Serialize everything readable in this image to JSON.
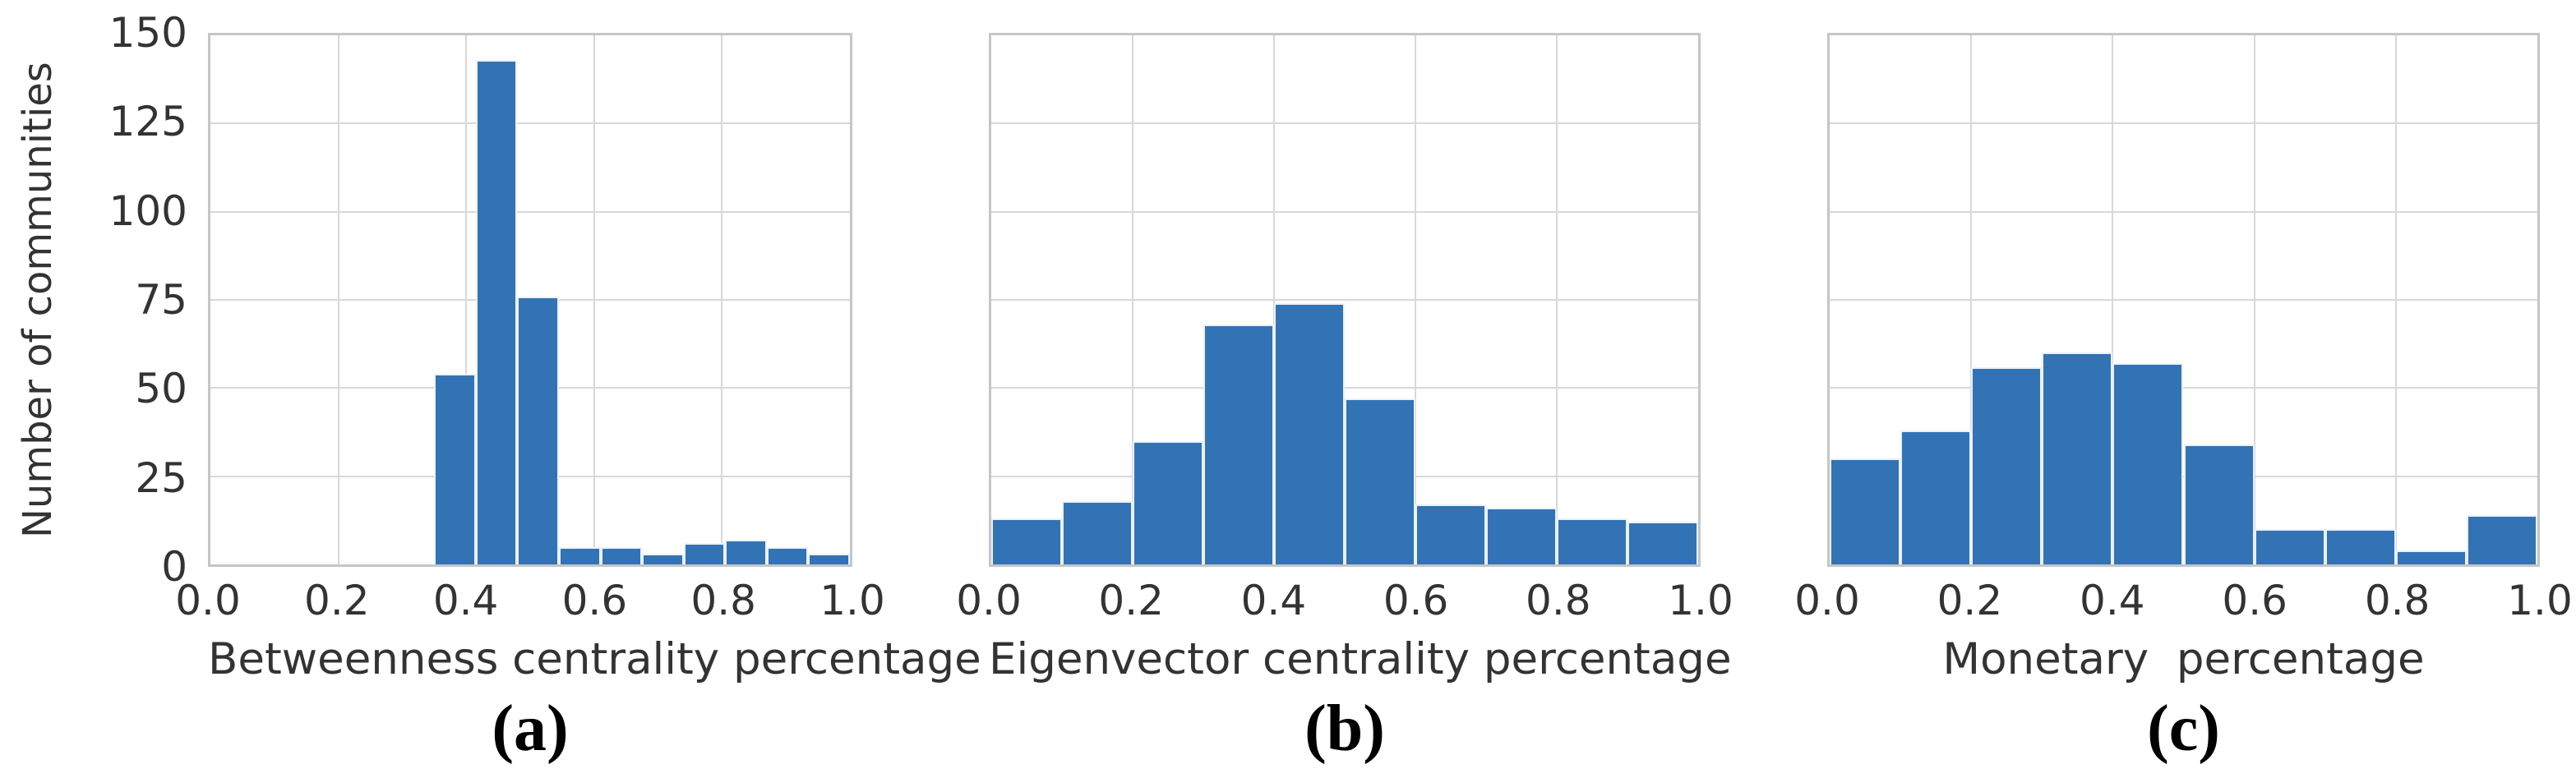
{
  "figure": {
    "background": "#ffffff",
    "y_axis": {
      "label": "Number of communities",
      "tick_labels": [
        "0",
        "25",
        "50",
        "75",
        "100",
        "125",
        "150"
      ],
      "tick_values": [
        0,
        25,
        50,
        75,
        100,
        125,
        150
      ],
      "max": 150
    },
    "x_axis": {
      "tick_labels": [
        "0.0",
        "0.2",
        "0.4",
        "0.6",
        "0.8",
        "1.0"
      ],
      "tick_values": [
        0,
        0.2,
        0.4,
        0.6,
        0.8,
        1.0
      ]
    },
    "colors": {
      "bar_fill": "#3273b5",
      "grid_line": "#d8d8d8",
      "plot_border": "#c6c6c6",
      "text": "#333333"
    }
  },
  "chart_data": [
    {
      "type": "bar",
      "panel_letter": "(a)",
      "xlabel": "Betweenness centrality percentage",
      "ylabel": "Number of communities",
      "xlim": [
        0,
        1
      ],
      "ylim": [
        0,
        150
      ],
      "grid": true,
      "legend": null,
      "bin_start": 0.35,
      "bin_width": 0.065,
      "values": [
        54,
        143,
        76,
        5,
        5,
        3,
        6,
        7,
        5,
        3
      ]
    },
    {
      "type": "bar",
      "panel_letter": "(b)",
      "xlabel": "Eigenvector centrality percentage",
      "ylabel": "",
      "xlim": [
        0,
        1
      ],
      "ylim": [
        0,
        150
      ],
      "grid": true,
      "legend": null,
      "bin_start": 0.0,
      "bin_width": 0.1,
      "values": [
        13,
        18,
        35,
        68,
        74,
        47,
        17,
        16,
        13,
        12
      ]
    },
    {
      "type": "bar",
      "panel_letter": "(c)",
      "xlabel": "Monetary  percentage",
      "ylabel": "",
      "xlim": [
        0,
        1
      ],
      "ylim": [
        0,
        150
      ],
      "grid": true,
      "legend": null,
      "bin_start": 0.0,
      "bin_width": 0.1,
      "values": [
        30,
        38,
        56,
        60,
        57,
        34,
        10,
        10,
        4,
        14
      ]
    }
  ]
}
